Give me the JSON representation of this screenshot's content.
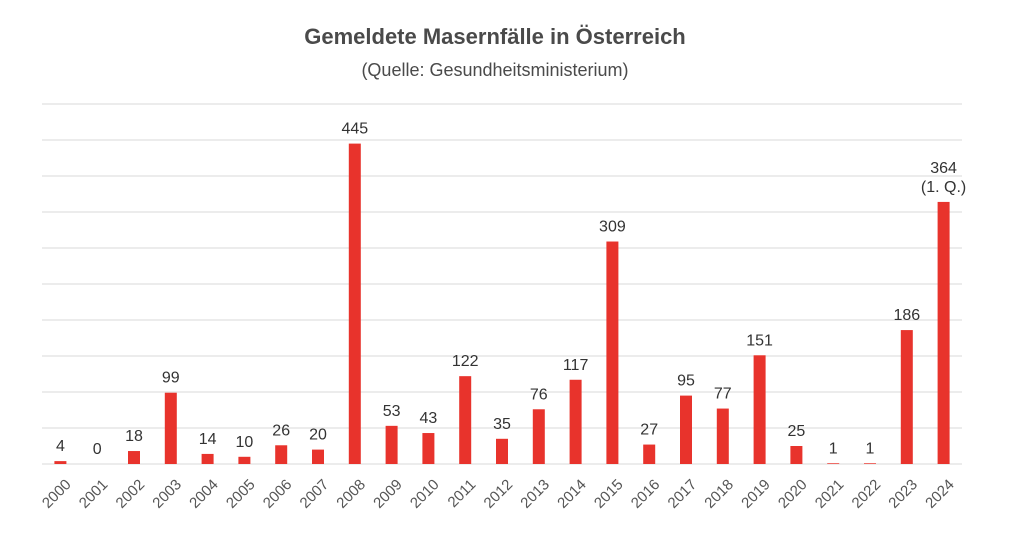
{
  "chart_data": {
    "type": "bar",
    "title": "Gemeldete Masernfälle in Österreich",
    "subtitle": "(Quelle: Gesundheitsministerium)",
    "categories": [
      "2000",
      "2001",
      "2002",
      "2003",
      "2004",
      "2005",
      "2006",
      "2007",
      "2008",
      "2009",
      "2010",
      "2011",
      "2012",
      "2013",
      "2014",
      "2015",
      "2016",
      "2017",
      "2018",
      "2019",
      "2020",
      "2021",
      "2022",
      "2023",
      "2024"
    ],
    "values": [
      4,
      0,
      18,
      99,
      14,
      10,
      26,
      20,
      445,
      53,
      43,
      122,
      35,
      76,
      117,
      309,
      27,
      95,
      77,
      151,
      25,
      1,
      1,
      186,
      364
    ],
    "data_labels": [
      "4",
      "0",
      "18",
      "99",
      "14",
      "10",
      "26",
      "20",
      "445",
      "53",
      "43",
      "122",
      "35",
      "76",
      "117",
      "309",
      "27",
      "95",
      "77",
      "151",
      "25",
      "1",
      "1",
      "186",
      "364\n(1. Q.)"
    ],
    "ylim": [
      0,
      500
    ],
    "grid": true,
    "bar_color": "#e8332c"
  }
}
